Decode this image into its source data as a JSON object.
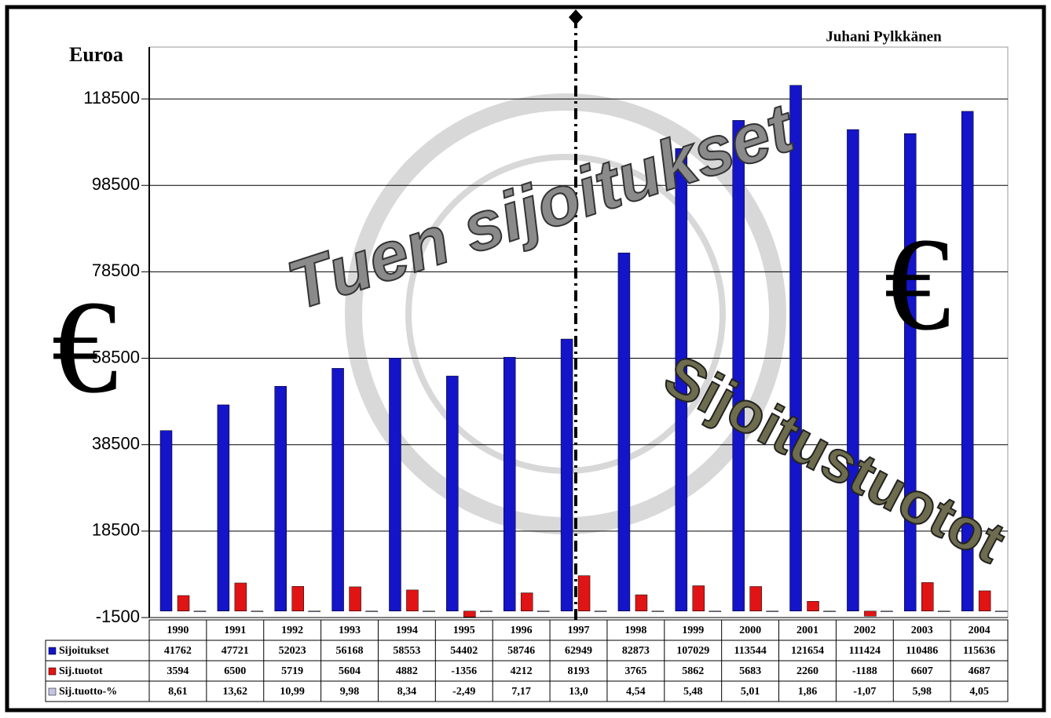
{
  "chart_data": {
    "type": "bar",
    "y_label": "Euroa",
    "author": "Juhani Pylkkänen",
    "annotations": [
      "Tuen sijoitukset",
      "Sijoitustuotot",
      "€",
      "€"
    ],
    "categories": [
      "1990",
      "1991",
      "1992",
      "1993",
      "1994",
      "1995",
      "1996",
      "1997",
      "1998",
      "1999",
      "2000",
      "2001",
      "2002",
      "2003",
      "2004"
    ],
    "series": [
      {
        "name": "Sijoitukset",
        "color": "#1414c8",
        "values": [
          41762,
          47721,
          52023,
          56168,
          58553,
          54402,
          58746,
          62949,
          82873,
          107029,
          113544,
          121654,
          111424,
          110486,
          115636
        ]
      },
      {
        "name": "Sij.tuotot",
        "color": "#e01414",
        "values": [
          3594,
          6500,
          5719,
          5604,
          4882,
          -1356,
          4212,
          8193,
          3765,
          5862,
          5683,
          2260,
          -1188,
          6607,
          4687
        ]
      },
      {
        "name": "Sij.tuotto-%",
        "color": "#c4c4e4",
        "values": [
          8.61,
          13.62,
          10.99,
          9.98,
          8.34,
          -2.49,
          7.17,
          13.0,
          4.54,
          5.48,
          5.01,
          1.86,
          -1.07,
          5.98,
          4.05
        ],
        "value_labels": [
          "8,61",
          "13,62",
          "10,99",
          "9,98",
          "8,34",
          "-2,49",
          "7,17",
          "13,0",
          "4,54",
          "5,48",
          "5,01",
          "1,86",
          "-1,07",
          "5,98",
          "4,05"
        ]
      }
    ],
    "ylim": [
      -1500,
      130500
    ],
    "yticks": [
      -1500,
      18500,
      38500,
      58500,
      78500,
      98500,
      118500
    ],
    "grid": true
  }
}
